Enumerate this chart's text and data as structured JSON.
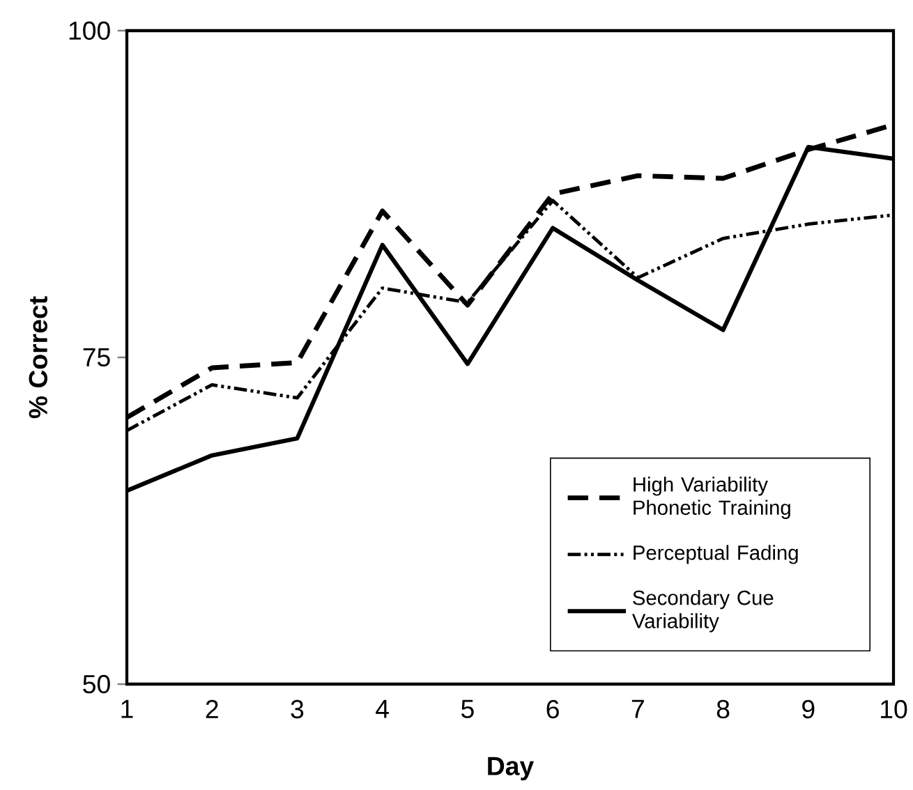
{
  "chart_data": {
    "type": "line",
    "xlabel": "Day",
    "ylabel": "% Correct",
    "x": [
      1,
      2,
      3,
      4,
      5,
      6,
      7,
      8,
      9,
      10
    ],
    "series": [
      {
        "name": "High Variability Phonetic Training",
        "color": "#000000",
        "line_style": "dashed",
        "values": [
          70.4,
          74.2,
          74.6,
          86.2,
          79.0,
          87.5,
          88.9,
          88.7,
          90.9,
          92.8
        ]
      },
      {
        "name": "Perceptual Fading",
        "color": "#000000",
        "line_style": "dashdot",
        "values": [
          69.4,
          72.9,
          71.9,
          80.3,
          79.2,
          87.0,
          81.1,
          84.1,
          85.2,
          85.9
        ]
      },
      {
        "name": "Secondary Cue Variability",
        "color": "#000000",
        "line_style": "solid",
        "values": [
          64.8,
          67.5,
          68.8,
          83.6,
          74.5,
          84.9,
          80.9,
          77.1,
          91.1,
          90.2
        ]
      }
    ],
    "xlim": [
      1,
      10
    ],
    "xticks": [
      1,
      2,
      3,
      4,
      5,
      6,
      7,
      8,
      9,
      10
    ],
    "ylim": [
      50,
      100
    ],
    "yticks": [
      50,
      75,
      100
    ],
    "grid": false,
    "legend": "bottom right",
    "marker": "none"
  }
}
